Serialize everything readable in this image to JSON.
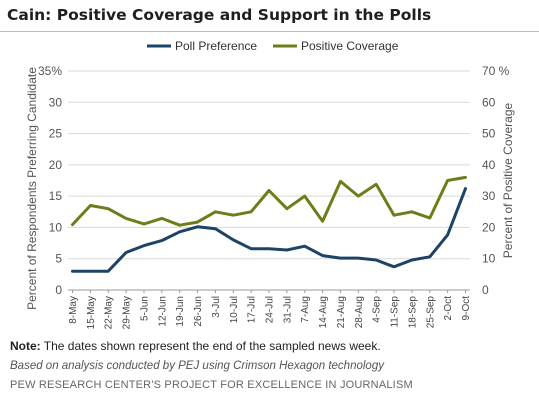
{
  "title": "Cain: Positive Coverage and Support in the Polls",
  "note_label": "Note:",
  "note_text": "The dates shown represent the end of the sampled news week.",
  "source": "Based on analysis conducted by PEJ using Crimson Hexagon technology",
  "credit": "PEW RESEARCH CENTER'S PROJECT FOR EXCELLENCE IN JOURNALISM",
  "chart_data": {
    "type": "line",
    "title": "Cain: Positive Coverage and Support in the Polls",
    "x": [
      "8-May",
      "15-May",
      "22-May",
      "29-May",
      "5-Jun",
      "12-Jun",
      "19-Jun",
      "26-Jun",
      "3-Jul",
      "10-Jul",
      "17-Jul",
      "24-Jul",
      "31-Jul",
      "7-Aug",
      "14-Aug",
      "21-Aug",
      "28-Aug",
      "4-Sep",
      "11-Sep",
      "18-Sep",
      "25-Sep",
      "2-Oct",
      "9-Oct"
    ],
    "ylabel_left": "Percent of Respondents Preferring Candidate",
    "ylabel_right": "Percent of Positive Coverage",
    "ylim_left": [
      0,
      35
    ],
    "ylim_right": [
      0,
      70
    ],
    "yticks_left": [
      "0",
      "5",
      "10",
      "15",
      "20",
      "25",
      "30",
      "35%"
    ],
    "yticks_right": [
      "0",
      "10",
      "20",
      "30",
      "40",
      "50",
      "60",
      "70 %"
    ],
    "grid": true,
    "legend_position": "top",
    "series": [
      {
        "name": "Poll Preference",
        "axis": "left",
        "color": "#1d4366",
        "values": [
          3.0,
          3.0,
          3.0,
          6.0,
          7.1,
          7.9,
          9.3,
          10.1,
          9.8,
          8.0,
          6.6,
          6.6,
          6.4,
          7.0,
          5.5,
          5.1,
          5.1,
          4.8,
          3.7,
          4.8,
          5.3,
          8.8,
          16.2
        ]
      },
      {
        "name": "Positive Coverage",
        "axis": "right",
        "color": "#6d7d1a",
        "values": [
          20.9,
          27.0,
          26.0,
          22.9,
          21.1,
          22.9,
          20.7,
          21.7,
          25.0,
          23.9,
          25.0,
          31.8,
          26.0,
          30.0,
          22.0,
          34.7,
          30.0,
          33.8,
          23.9,
          25.0,
          23.0,
          35.0,
          36.0
        ]
      }
    ]
  }
}
